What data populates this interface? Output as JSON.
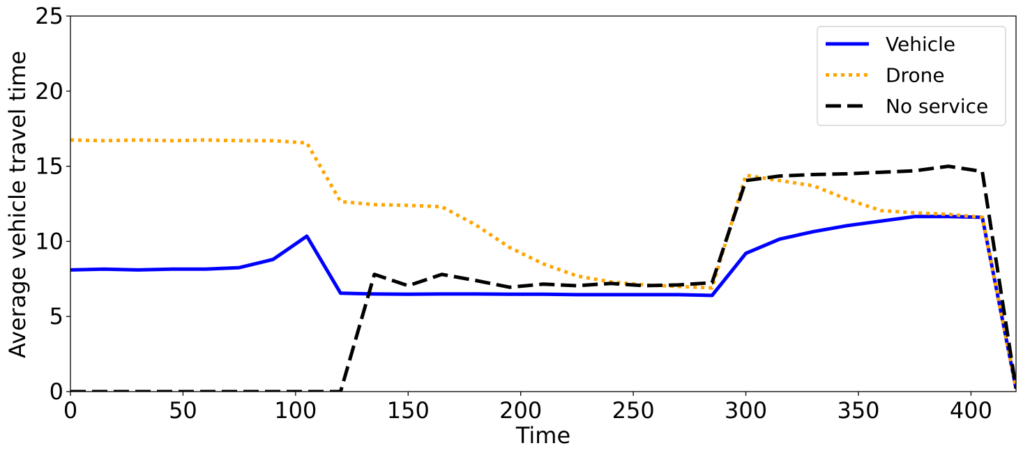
{
  "chart_data": {
    "type": "line",
    "title": "",
    "xlabel": "Time",
    "ylabel": "Average vehicle travel time",
    "xlim": [
      0,
      420
    ],
    "ylim": [
      0,
      25
    ],
    "xticks": [
      0,
      50,
      100,
      150,
      200,
      250,
      300,
      350,
      400
    ],
    "yticks": [
      0,
      5,
      10,
      15,
      20,
      25
    ],
    "grid": false,
    "legend_position": "top-right",
    "series": [
      {
        "name": "Vehicle",
        "color": "#0000ff",
        "style": "solid",
        "x": [
          0,
          15,
          30,
          45,
          60,
          75,
          90,
          105,
          120,
          135,
          150,
          165,
          180,
          195,
          210,
          225,
          240,
          255,
          270,
          285,
          300,
          315,
          330,
          345,
          360,
          375,
          390,
          405,
          420
        ],
        "y": [
          8.1,
          8.15,
          8.1,
          8.15,
          8.15,
          8.25,
          8.8,
          10.35,
          6.55,
          6.5,
          6.48,
          6.5,
          6.5,
          6.48,
          6.48,
          6.45,
          6.45,
          6.45,
          6.45,
          6.4,
          9.2,
          10.15,
          10.65,
          11.05,
          11.35,
          11.65,
          11.65,
          11.6,
          0.2
        ]
      },
      {
        "name": "Drone",
        "color": "#ffa500",
        "style": "dotted",
        "x": [
          0,
          15,
          30,
          45,
          60,
          75,
          90,
          105,
          120,
          135,
          150,
          165,
          180,
          195,
          210,
          225,
          240,
          255,
          270,
          285,
          300,
          315,
          330,
          345,
          360,
          375,
          390,
          405,
          420
        ],
        "y": [
          16.75,
          16.7,
          16.75,
          16.7,
          16.75,
          16.7,
          16.7,
          16.55,
          12.65,
          12.45,
          12.4,
          12.3,
          11.1,
          9.6,
          8.5,
          7.7,
          7.3,
          7.1,
          7.0,
          6.9,
          14.4,
          14.05,
          13.7,
          12.8,
          12.05,
          11.9,
          11.8,
          11.6,
          0.2
        ]
      },
      {
        "name": "No service",
        "color": "#000000",
        "style": "dashed",
        "x": [
          0,
          15,
          30,
          45,
          60,
          75,
          90,
          105,
          120,
          135,
          150,
          165,
          180,
          195,
          210,
          225,
          240,
          255,
          270,
          285,
          300,
          315,
          330,
          345,
          360,
          375,
          390,
          405,
          420
        ],
        "y": [
          0,
          0,
          0,
          0,
          0,
          0,
          0,
          0,
          0,
          7.8,
          7.05,
          7.8,
          7.4,
          6.95,
          7.15,
          7.05,
          7.2,
          7.05,
          7.1,
          7.25,
          14.05,
          14.35,
          14.45,
          14.5,
          14.6,
          14.7,
          15.0,
          14.65,
          0.2
        ]
      }
    ]
  }
}
